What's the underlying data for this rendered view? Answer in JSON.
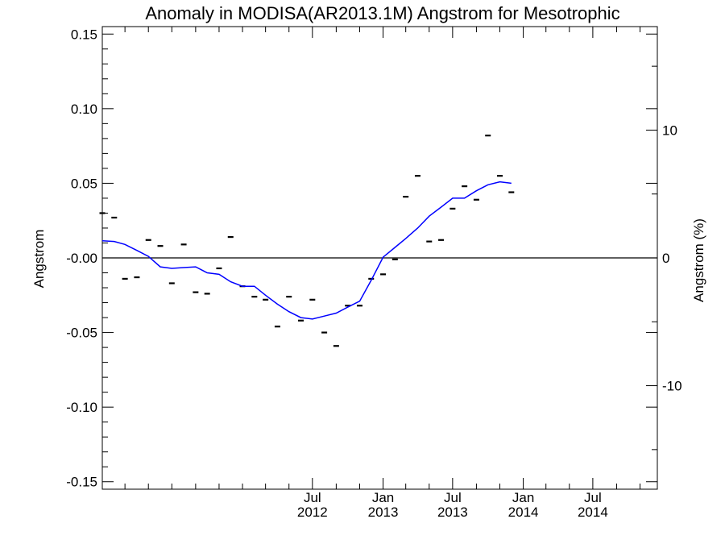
{
  "chart_data": {
    "type": "line",
    "title": "Anomaly in MODISA(AR2013.1M) Angstrom for Mesotrophic",
    "ylabel": "Angstrom",
    "ylabel_right": "Angstrom (%)",
    "xlabel": "",
    "ylim": [
      -0.155,
      0.155
    ],
    "ylim_right": [
      -18.1,
      18.1
    ],
    "x_range": [
      "2011-01-16",
      "2014-12-31"
    ],
    "grid": false,
    "y_ticks": [
      {
        "value": 0.15,
        "label": "0.15"
      },
      {
        "value": 0.1,
        "label": "0.10"
      },
      {
        "value": 0.05,
        "label": "0.05"
      },
      {
        "value": 0.0,
        "label": "-0.00"
      },
      {
        "value": -0.05,
        "label": "-0.05"
      },
      {
        "value": -0.1,
        "label": "-0.10"
      },
      {
        "value": -0.15,
        "label": "-0.15"
      }
    ],
    "y_right_ticks": [
      {
        "value": 10,
        "label": "10"
      },
      {
        "value": 0,
        "label": "0"
      },
      {
        "value": -10,
        "label": "-10"
      }
    ],
    "x_ticks": [
      {
        "date": "2012-07",
        "month": "Jul",
        "year": "2012"
      },
      {
        "date": "2013-01",
        "month": "Jan",
        "year": "2013"
      },
      {
        "date": "2013-07",
        "month": "Jul",
        "year": "2013"
      },
      {
        "date": "2014-01",
        "month": "Jan",
        "year": "2014"
      },
      {
        "date": "2014-07",
        "month": "Jul",
        "year": "2014"
      }
    ],
    "x_minor_ticks": [
      "2011-03",
      "2011-05",
      "2011-07",
      "2011-09",
      "2011-11",
      "2012-01",
      "2012-03",
      "2012-05",
      "2012-09",
      "2012-11",
      "2013-03",
      "2013-05",
      "2013-09",
      "2013-11",
      "2014-03",
      "2014-05",
      "2014-09",
      "2014-11"
    ],
    "zero_line": 0,
    "series": [
      {
        "type": "markers",
        "color": "#000000",
        "points": [
          {
            "x": "2011-01",
            "y": 0.03
          },
          {
            "x": "2011-02",
            "y": 0.027
          },
          {
            "x": "2011-03",
            "y": -0.014
          },
          {
            "x": "2011-04",
            "y": -0.013
          },
          {
            "x": "2011-05",
            "y": 0.012
          },
          {
            "x": "2011-06",
            "y": 0.008
          },
          {
            "x": "2011-07",
            "y": -0.017
          },
          {
            "x": "2011-08",
            "y": 0.009
          },
          {
            "x": "2011-09",
            "y": -0.023
          },
          {
            "x": "2011-10",
            "y": -0.024
          },
          {
            "x": "2011-11",
            "y": -0.007
          },
          {
            "x": "2011-12",
            "y": 0.014
          },
          {
            "x": "2012-01",
            "y": -0.019
          },
          {
            "x": "2012-02",
            "y": -0.026
          },
          {
            "x": "2012-03",
            "y": -0.028
          },
          {
            "x": "2012-04",
            "y": -0.046
          },
          {
            "x": "2012-05",
            "y": -0.026
          },
          {
            "x": "2012-06",
            "y": -0.042
          },
          {
            "x": "2012-07",
            "y": -0.028
          },
          {
            "x": "2012-08",
            "y": -0.05
          },
          {
            "x": "2012-09",
            "y": -0.059
          },
          {
            "x": "2012-10",
            "y": -0.032
          },
          {
            "x": "2012-11",
            "y": -0.032
          },
          {
            "x": "2012-12",
            "y": -0.014
          },
          {
            "x": "2013-01",
            "y": -0.011
          },
          {
            "x": "2013-02",
            "y": -0.001
          },
          {
            "x": "2013-03",
            "y": 0.041
          },
          {
            "x": "2013-04",
            "y": 0.055
          },
          {
            "x": "2013-05",
            "y": 0.011
          },
          {
            "x": "2013-06",
            "y": 0.012
          },
          {
            "x": "2013-07",
            "y": 0.033
          },
          {
            "x": "2013-08",
            "y": 0.048
          },
          {
            "x": "2013-09",
            "y": 0.039
          },
          {
            "x": "2013-10",
            "y": 0.082
          },
          {
            "x": "2013-11",
            "y": 0.055
          },
          {
            "x": "2013-12",
            "y": 0.044
          }
        ]
      },
      {
        "type": "line",
        "color": "#0000ff",
        "points": [
          {
            "x": "2011-01",
            "y": 0.0115
          },
          {
            "x": "2011-02",
            "y": 0.011
          },
          {
            "x": "2011-03",
            "y": 0.009
          },
          {
            "x": "2011-04",
            "y": 0.005
          },
          {
            "x": "2011-05",
            "y": 0.001
          },
          {
            "x": "2011-06",
            "y": -0.006
          },
          {
            "x": "2011-07",
            "y": -0.007
          },
          {
            "x": "2011-08",
            "y": -0.0065
          },
          {
            "x": "2011-09",
            "y": -0.006
          },
          {
            "x": "2011-10",
            "y": -0.01
          },
          {
            "x": "2011-11",
            "y": -0.011
          },
          {
            "x": "2011-12",
            "y": -0.016
          },
          {
            "x": "2012-01",
            "y": -0.019
          },
          {
            "x": "2012-02",
            "y": -0.019
          },
          {
            "x": "2012-03",
            "y": -0.025
          },
          {
            "x": "2012-04",
            "y": -0.031
          },
          {
            "x": "2012-05",
            "y": -0.036
          },
          {
            "x": "2012-06",
            "y": -0.04
          },
          {
            "x": "2012-07",
            "y": -0.041
          },
          {
            "x": "2012-08",
            "y": -0.039
          },
          {
            "x": "2012-09",
            "y": -0.037
          },
          {
            "x": "2012-10",
            "y": -0.033
          },
          {
            "x": "2012-11",
            "y": -0.029
          },
          {
            "x": "2012-12",
            "y": -0.015
          },
          {
            "x": "2013-01",
            "y": 0.0005
          },
          {
            "x": "2013-02",
            "y": 0.007
          },
          {
            "x": "2013-03",
            "y": 0.013
          },
          {
            "x": "2013-04",
            "y": 0.02
          },
          {
            "x": "2013-05",
            "y": 0.028
          },
          {
            "x": "2013-06",
            "y": 0.034
          },
          {
            "x": "2013-07",
            "y": 0.04
          },
          {
            "x": "2013-08",
            "y": 0.04
          },
          {
            "x": "2013-09",
            "y": 0.045
          },
          {
            "x": "2013-10",
            "y": 0.049
          },
          {
            "x": "2013-11",
            "y": 0.051
          },
          {
            "x": "2013-12",
            "y": 0.05
          }
        ]
      }
    ]
  }
}
